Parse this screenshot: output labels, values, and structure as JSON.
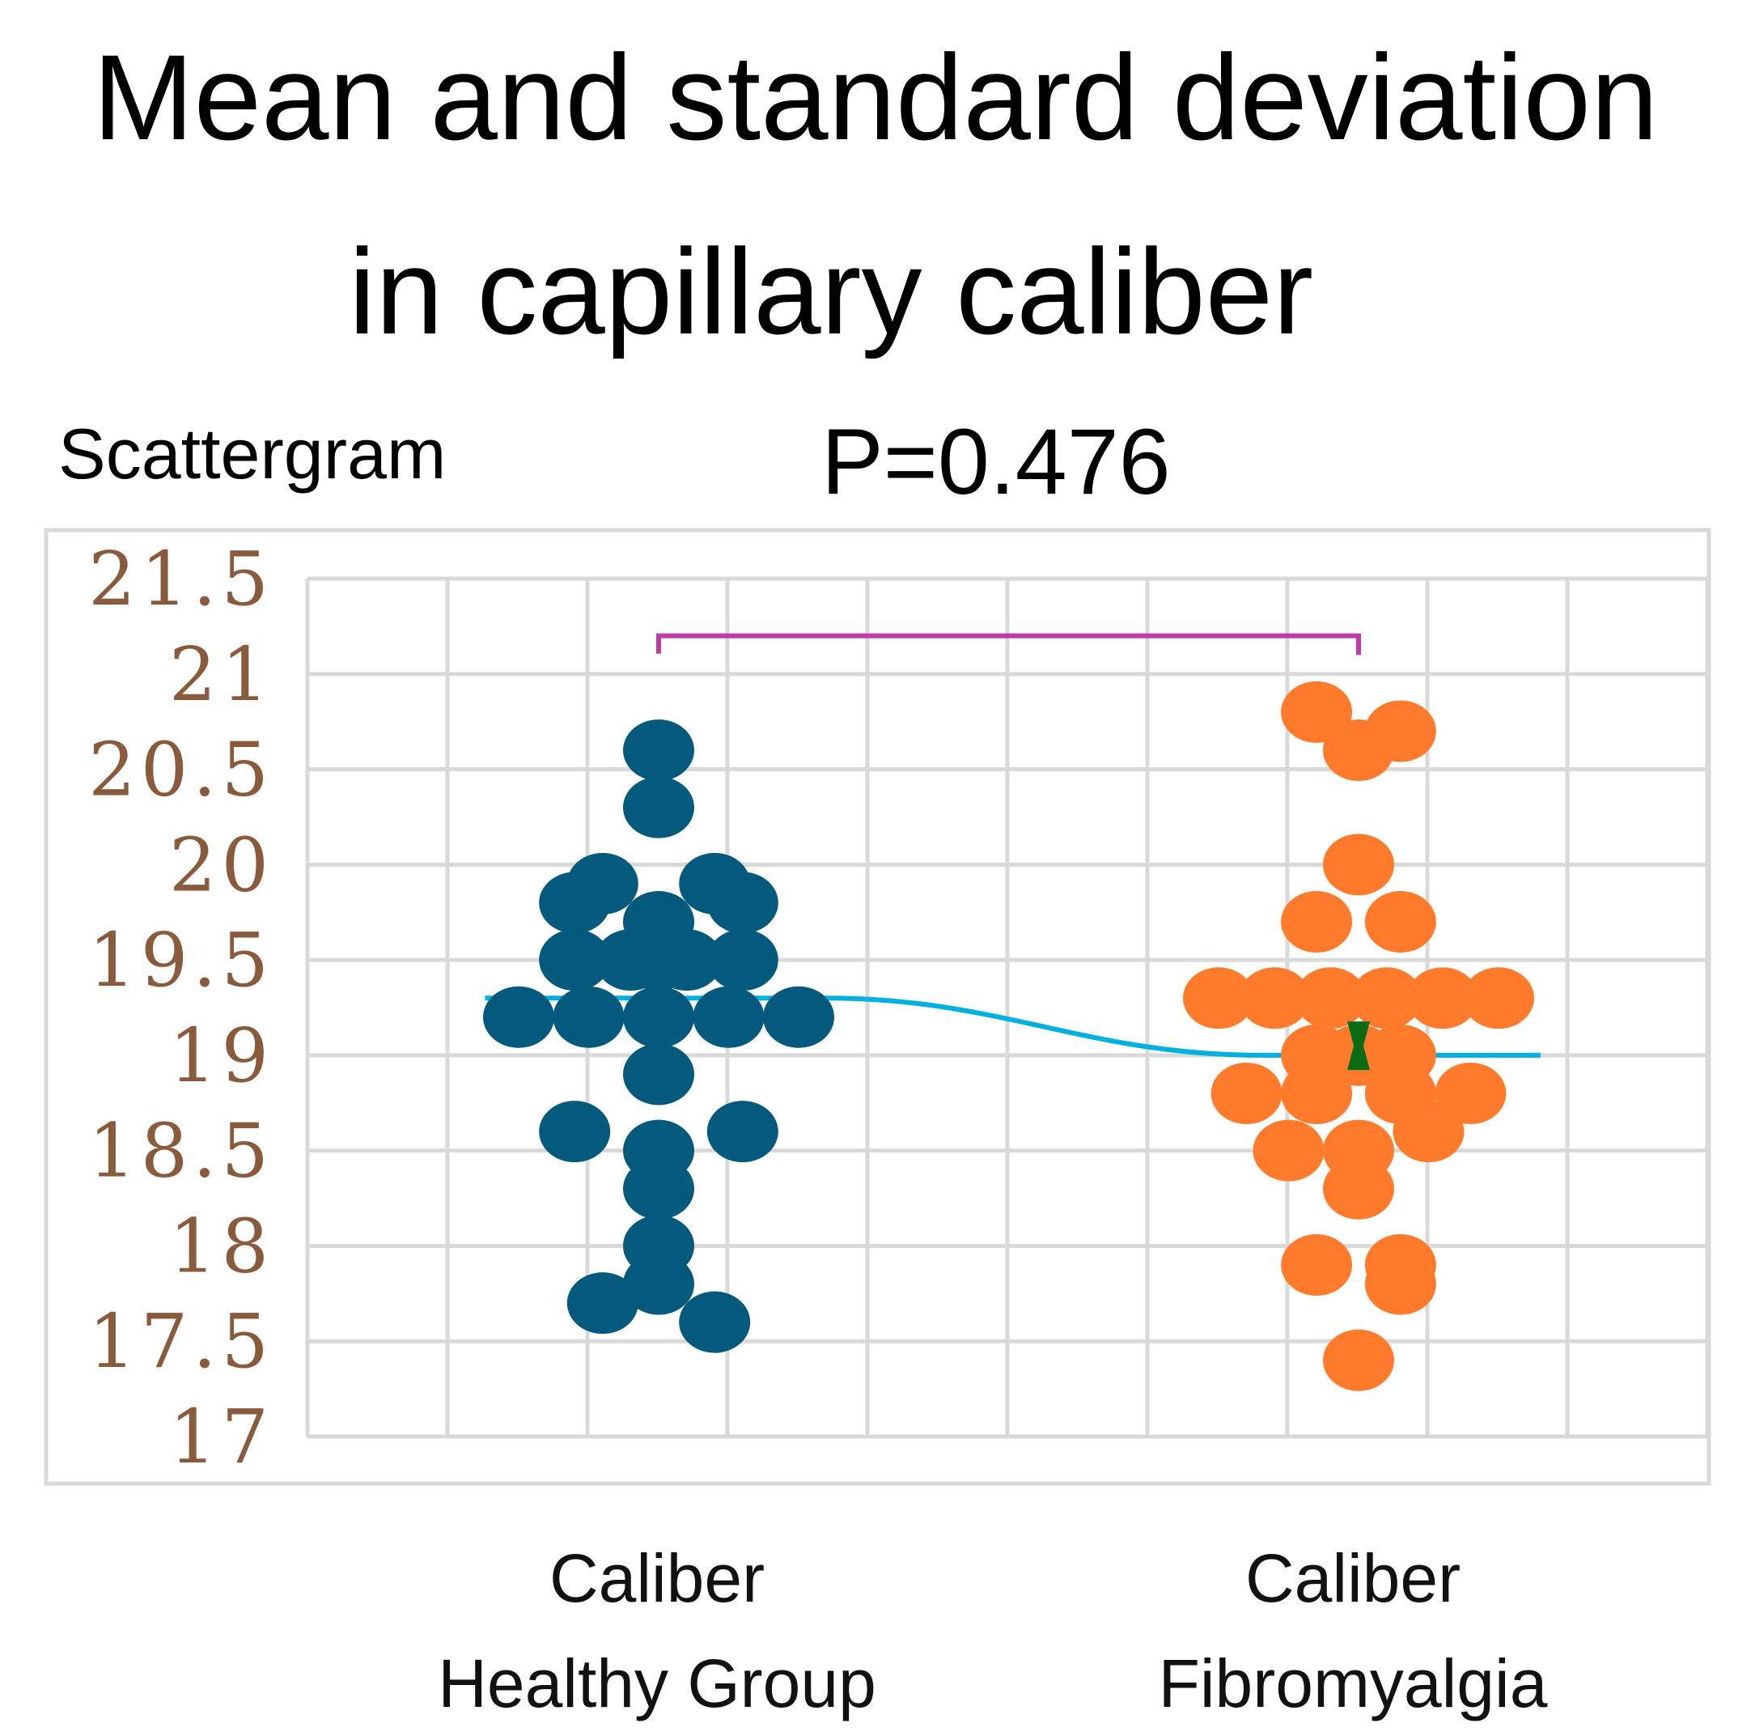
{
  "chart_data": {
    "type": "scatter",
    "title_lines": [
      "Mean and standard deviation",
      "in capillary caliber"
    ],
    "subtitle": "Scattergram",
    "annotation": "P=0.476",
    "categories": [
      [
        "Caliber",
        "Healthy Group"
      ],
      [
        "Caliber",
        "Fibromyalgia"
      ]
    ],
    "ylim": [
      17,
      21.5
    ],
    "yticks": [
      "21.5",
      "21",
      "20.5",
      "20",
      "19.5",
      "19",
      "18.5",
      "18",
      "17.5",
      "17"
    ],
    "grid": true,
    "colors": {
      "healthy": "#045a7d",
      "fibromyalgia": "#ff7b2b",
      "mean_line": "#00b0e0",
      "bracket": "#c03aa8",
      "mean_marker": "#0a6b10",
      "grid": "#d9d9d9",
      "tick_label": "#8a5a3c"
    },
    "series": [
      {
        "points": [
          [
            0.0,
            20.6
          ],
          [
            0.0,
            20.3
          ],
          [
            -0.2,
            19.9
          ],
          [
            -0.3,
            19.8
          ],
          [
            0.0,
            19.7
          ],
          [
            0.2,
            19.9
          ],
          [
            0.3,
            19.8
          ],
          [
            -0.3,
            19.5
          ],
          [
            -0.1,
            19.5
          ],
          [
            0.0,
            19.5
          ],
          [
            0.1,
            19.5
          ],
          [
            0.3,
            19.5
          ],
          [
            -0.5,
            19.2
          ],
          [
            -0.25,
            19.2
          ],
          [
            0.0,
            19.2
          ],
          [
            0.25,
            19.2
          ],
          [
            0.5,
            19.2
          ],
          [
            0.0,
            18.9
          ],
          [
            -0.3,
            18.6
          ],
          [
            0.0,
            18.5
          ],
          [
            0.3,
            18.6
          ],
          [
            0.0,
            18.3
          ],
          [
            0.0,
            18.0
          ],
          [
            0.0,
            17.8
          ],
          [
            -0.2,
            17.7
          ],
          [
            0.2,
            17.6
          ]
        ]
      },
      {
        "points": [
          [
            -0.15,
            20.8
          ],
          [
            0.15,
            20.7
          ],
          [
            0.0,
            20.6
          ],
          [
            0.0,
            20.0
          ],
          [
            -0.15,
            19.7
          ],
          [
            0.15,
            19.7
          ],
          [
            -0.5,
            19.3
          ],
          [
            -0.3,
            19.3
          ],
          [
            -0.1,
            19.3
          ],
          [
            0.1,
            19.3
          ],
          [
            0.3,
            19.3
          ],
          [
            0.5,
            19.3
          ],
          [
            -0.15,
            19.0
          ],
          [
            0.15,
            19.0
          ],
          [
            0.0,
            19.0
          ],
          [
            -0.4,
            18.8
          ],
          [
            -0.15,
            18.8
          ],
          [
            0.15,
            18.8
          ],
          [
            0.4,
            18.8
          ],
          [
            -0.25,
            18.5
          ],
          [
            0.0,
            18.5
          ],
          [
            0.25,
            18.6
          ],
          [
            0.0,
            18.3
          ],
          [
            -0.15,
            17.9
          ],
          [
            0.15,
            17.9
          ],
          [
            0.15,
            17.8
          ],
          [
            0.0,
            17.4
          ]
        ]
      }
    ],
    "mean_line": [
      [
        -0.62,
        19.3
      ],
      [
        0.6,
        19.3
      ],
      [
        2.15,
        19.0
      ],
      [
        3.15,
        19.0
      ]
    ],
    "bracket": {
      "x": [
        0.0,
        2.5
      ],
      "y": 21.2,
      "tick_y": 21.1
    },
    "fibromyalgia_mean_marker": {
      "x": 2.5,
      "y": 19.05
    }
  }
}
